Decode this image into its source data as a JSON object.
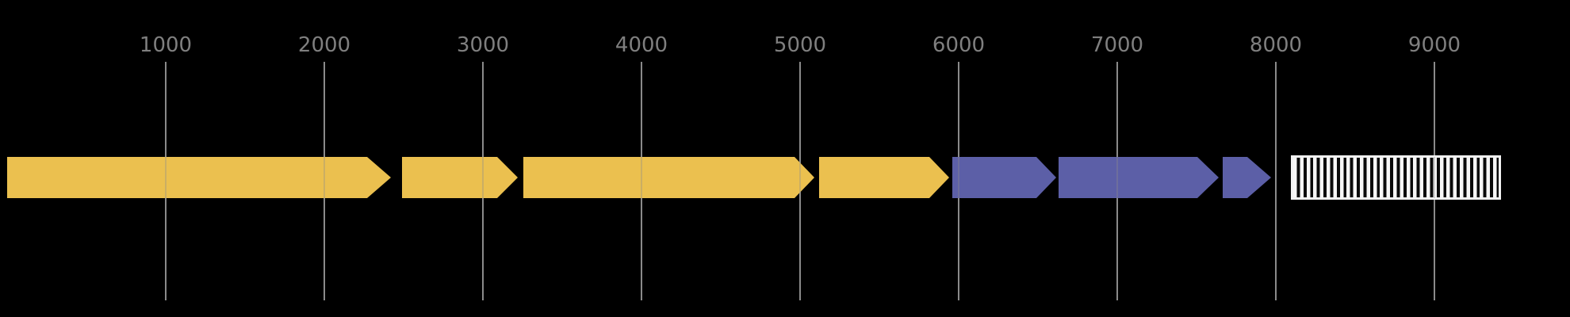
{
  "figure": {
    "name": "genome-feature-map",
    "background_color": "#000000",
    "axis": {
      "tick_label_color": "#7f7f7f",
      "gridline_color": "#8a8a8a",
      "ticks": [
        {
          "value": 1000,
          "label": "1000"
        },
        {
          "value": 2000,
          "label": "2000"
        },
        {
          "value": 3000,
          "label": "3000"
        },
        {
          "value": 4000,
          "label": "4000"
        },
        {
          "value": 5000,
          "label": "5000"
        },
        {
          "value": 6000,
          "label": "6000"
        },
        {
          "value": 7000,
          "label": "7000"
        },
        {
          "value": 8000,
          "label": "8000"
        },
        {
          "value": 9000,
          "label": "9000"
        }
      ]
    },
    "colors": {
      "gold_feature": "#EBC04F",
      "purple_feature": "#5C5FA7",
      "hatch_face": "#f7f7f7",
      "hatch_stripe": "#0a0a0a",
      "hatch_edge": "#f2f2f2"
    }
  },
  "chart_data": {
    "type": "gene_map",
    "title": "",
    "xlabel": "",
    "xlim": [
      -45,
      9855
    ],
    "axis_tick_values": [
      1000,
      2000,
      3000,
      4000,
      5000,
      6000,
      7000,
      8000,
      9000
    ],
    "grid": true,
    "features": [
      {
        "name": "gold-arrow-1",
        "shape": "arrow",
        "direction": "right",
        "start": 0,
        "end": 2420,
        "head": 150,
        "color": "#EBC04F"
      },
      {
        "name": "gold-arrow-2",
        "shape": "arrow",
        "direction": "right",
        "start": 2490,
        "end": 3220,
        "head": 130,
        "color": "#EBC04F"
      },
      {
        "name": "gold-arrow-3",
        "shape": "arrow",
        "direction": "right",
        "start": 3255,
        "end": 5090,
        "head": 125,
        "color": "#EBC04F"
      },
      {
        "name": "gold-arrow-4",
        "shape": "arrow",
        "direction": "right",
        "start": 5120,
        "end": 5940,
        "head": 125,
        "color": "#EBC04F"
      },
      {
        "name": "purple-arrow-1",
        "shape": "arrow",
        "direction": "right",
        "start": 5960,
        "end": 6615,
        "head": 125,
        "color": "#5C5FA7"
      },
      {
        "name": "purple-arrow-2",
        "shape": "arrow",
        "direction": "right",
        "start": 6630,
        "end": 7640,
        "head": 135,
        "color": "#5C5FA7"
      },
      {
        "name": "purple-arrow-3",
        "shape": "arrow",
        "direction": "right",
        "start": 7665,
        "end": 7970,
        "head": 150,
        "color": "#5C5FA7"
      },
      {
        "name": "hatched-box",
        "shape": "hatched_box",
        "start": 8095,
        "end": 9420,
        "hatch": "vertical_stripes",
        "facecolor": "#f7f7f7",
        "edgecolor": "#f2f2f2"
      }
    ]
  }
}
